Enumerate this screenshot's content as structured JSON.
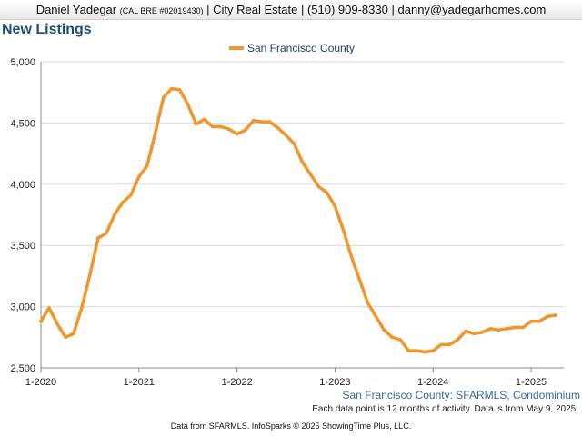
{
  "header": {
    "name": "Daniel Yadegar",
    "license": "(CAL BRE #02019430)",
    "company": "City Real Estate",
    "phone": "(510) 909-8330",
    "email": "danny@yadegarhomes.com",
    "separator": "|"
  },
  "footer": {
    "series_label": "San Francisco County: SFARMLS, Condominium",
    "note": "Each data point is 12 months of activity. Data is from May 9, 2025.",
    "credit": "Data from SFARMLS. InfoSparks © 2025 ShowingTime Plus, LLC."
  },
  "colors": {
    "series": "#f0962a",
    "title": "#1f4e79",
    "grid": "#d9d9d9"
  },
  "chart_data": {
    "type": "line",
    "title": "New Listings",
    "xlabel": "",
    "ylabel": "",
    "ylim": [
      2500,
      5000
    ],
    "yticks": [
      2500,
      3000,
      3500,
      4000,
      4500,
      5000
    ],
    "ytick_labels": [
      "2,500",
      "3,000",
      "3,500",
      "4,000",
      "4,500",
      "5,000"
    ],
    "xticks": [
      {
        "label": "1-2020",
        "month_index": 0
      },
      {
        "label": "1-2021",
        "month_index": 12
      },
      {
        "label": "1-2022",
        "month_index": 24
      },
      {
        "label": "1-2023",
        "month_index": 36
      },
      {
        "label": "1-2024",
        "month_index": 48
      },
      {
        "label": "1-2025",
        "month_index": 60
      }
    ],
    "grid": "horizontal",
    "legend_position": "top-center",
    "x_start": "2020-01",
    "x_end": "2025-04",
    "x_unit": "month",
    "series": [
      {
        "name": "San Francisco County",
        "values": [
          2880,
          2990,
          2860,
          2750,
          2780,
          2990,
          3260,
          3560,
          3600,
          3750,
          3850,
          3910,
          4060,
          4150,
          4420,
          4710,
          4780,
          4770,
          4650,
          4490,
          4530,
          4470,
          4470,
          4450,
          4410,
          4440,
          4520,
          4510,
          4510,
          4460,
          4400,
          4330,
          4180,
          4080,
          3980,
          3930,
          3820,
          3630,
          3410,
          3220,
          3030,
          2920,
          2810,
          2750,
          2730,
          2640,
          2640,
          2630,
          2640,
          2690,
          2690,
          2730,
          2800,
          2780,
          2790,
          2820,
          2810,
          2820,
          2830,
          2830,
          2880,
          2880,
          2920,
          2930
        ]
      }
    ]
  }
}
